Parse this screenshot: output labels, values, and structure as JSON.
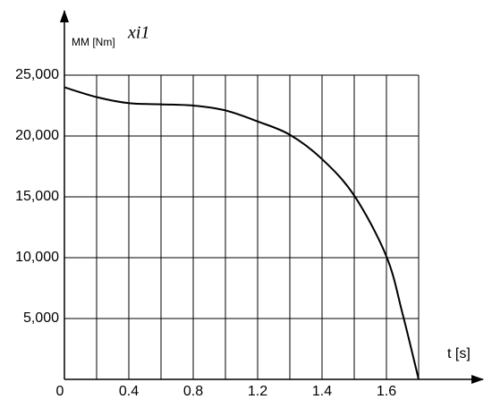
{
  "chart_data": {
    "type": "line",
    "y_label": "MM [Nm]",
    "y_label_suffix": "xi1",
    "x_label": "t [s]",
    "x": [
      0,
      0.2,
      0.4,
      0.6,
      0.8,
      1.0,
      1.2,
      1.3,
      1.4,
      1.5,
      1.6,
      1.65,
      1.7
    ],
    "series": [
      {
        "color": "#000000",
        "values": [
          24000,
          23200,
          22700,
          22600,
          22500,
          22100,
          21200,
          20100,
          18100,
          15100,
          10100,
          5400,
          0
        ]
      }
    ],
    "ylim": [
      0,
      25000
    ],
    "yticks": [
      {
        "value": 5000,
        "label": "5,000"
      },
      {
        "value": 10000,
        "label": "10,000"
      },
      {
        "value": 15000,
        "label": "15,000"
      },
      {
        "value": 20000,
        "label": "20,000"
      },
      {
        "value": 25000,
        "label": "25,000"
      }
    ],
    "xticks": [
      0,
      0.4,
      0.8,
      1.2,
      1.4,
      1.6
    ],
    "xgrid": [
      0.2,
      0.4,
      0.6,
      0.8,
      1.0,
      1.2,
      1.3,
      1.4,
      1.5,
      1.6,
      1.7
    ],
    "grid": true
  }
}
